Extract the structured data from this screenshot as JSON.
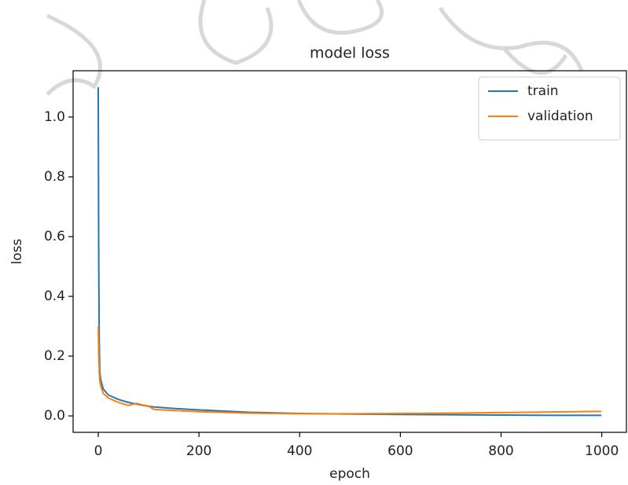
{
  "chart_data": {
    "type": "line",
    "title": "model loss",
    "x_label": "epoch",
    "y_label": "loss",
    "x": [
      0,
      1,
      2,
      3,
      5,
      10,
      20,
      40,
      60,
      75,
      80,
      90,
      100,
      110,
      150,
      200,
      300,
      400,
      500,
      600,
      700,
      800,
      900,
      999
    ],
    "series": [
      {
        "name": "train",
        "color": "#1f77b4",
        "values": [
          1.1,
          0.5,
          0.25,
          0.15,
          0.12,
          0.09,
          0.07,
          0.055,
          0.045,
          0.04,
          0.038,
          0.035,
          0.032,
          0.03,
          0.025,
          0.02,
          0.012,
          0.008,
          0.006,
          0.005,
          0.004,
          0.003,
          0.002,
          0.002
        ]
      },
      {
        "name": "validation",
        "color": "#ff7f0e",
        "values": [
          0.3,
          0.2,
          0.15,
          0.12,
          0.1,
          0.075,
          0.06,
          0.045,
          0.035,
          0.042,
          0.04,
          0.036,
          0.033,
          0.022,
          0.018,
          0.014,
          0.009,
          0.007,
          0.007,
          0.008,
          0.009,
          0.011,
          0.013,
          0.015
        ]
      }
    ],
    "xlim": [
      -49.95,
      1048.95
    ],
    "xticks": [
      0,
      200,
      400,
      600,
      800,
      1000
    ],
    "ylim": [
      -0.055,
      1.155
    ],
    "yticks": [
      {
        "value": 0,
        "label": "0.0"
      },
      0.2,
      0.4,
      0.6,
      0.8,
      {
        "value": 1,
        "label": "1.0"
      }
    ],
    "legend": "upper right",
    "grid": false
  }
}
